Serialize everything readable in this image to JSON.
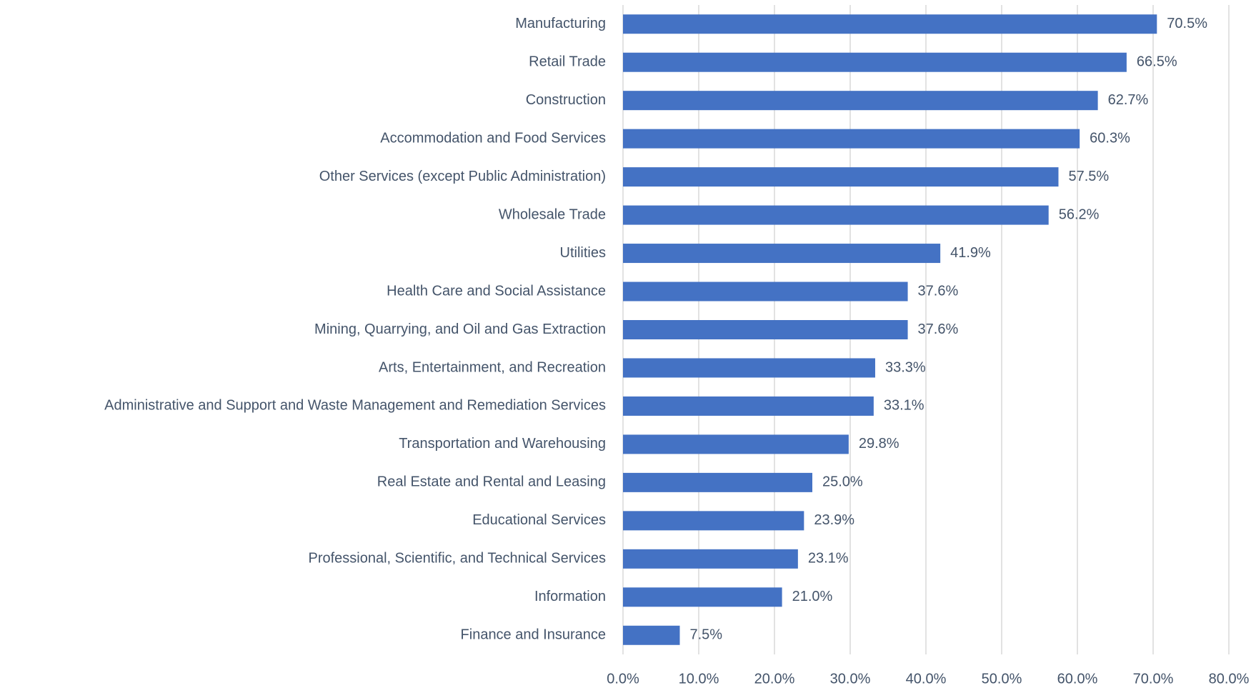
{
  "chart_data": {
    "type": "hbar",
    "categories": [
      "Manufacturing",
      "Retail Trade",
      "Construction",
      "Accommodation and Food Services",
      "Other Services (except Public Administration)",
      "Wholesale Trade",
      "Utilities",
      "Health Care and Social Assistance",
      "Mining, Quarrying, and Oil and Gas Extraction",
      "Arts, Entertainment, and Recreation",
      "Administrative and Support and Waste Management and Remediation Services",
      "Transportation and Warehousing",
      "Real Estate and Rental and Leasing",
      "Educational Services",
      "Professional, Scientific, and Technical Services",
      "Information",
      "Finance and Insurance"
    ],
    "values": [
      70.5,
      66.5,
      62.7,
      60.3,
      57.5,
      56.2,
      41.9,
      37.6,
      37.6,
      33.3,
      33.1,
      29.8,
      25.0,
      23.9,
      23.1,
      21.0,
      7.5
    ],
    "value_labels": [
      "70.5%",
      "66.5%",
      "62.7%",
      "60.3%",
      "57.5%",
      "56.2%",
      "41.9%",
      "37.6%",
      "37.6%",
      "33.3%",
      "33.1%",
      "29.8%",
      "25.0%",
      "23.9%",
      "23.1%",
      "21.0%",
      "7.5%"
    ],
    "color": "#4472c4",
    "xlim": [
      0,
      80
    ],
    "xticks": [
      {
        "value": 0,
        "label": "0.0%"
      },
      {
        "value": 10,
        "label": "10.0%"
      },
      {
        "value": 20,
        "label": "20.0%"
      },
      {
        "value": 30,
        "label": "30.0%"
      },
      {
        "value": 40,
        "label": "40.0%"
      },
      {
        "value": 50,
        "label": "50.0%"
      },
      {
        "value": 60,
        "label": "60.0%"
      },
      {
        "value": 70,
        "label": "70.0%"
      },
      {
        "value": 80,
        "label": "80.0%"
      }
    ],
    "grid": true
  }
}
